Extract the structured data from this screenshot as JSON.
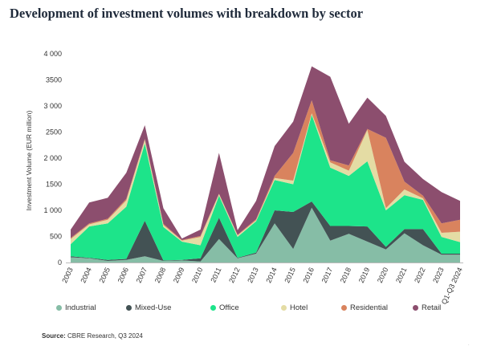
{
  "title": "Development of investment volumes with breakdown by sector",
  "source_label": "Source:",
  "source_text": "CBRE Research, Q3 2024",
  "page_marker": "·",
  "chart_data": {
    "type": "area",
    "stacked": true,
    "categories": [
      "2003",
      "2004",
      "2005",
      "2006",
      "2007",
      "2008",
      "2009",
      "2010",
      "2011",
      "2012",
      "2013",
      "2014",
      "2015",
      "2016",
      "2017",
      "2018",
      "2019",
      "2020",
      "2021",
      "2022",
      "2023",
      "Q1-Q3 2024"
    ],
    "ylabel": "Investment Volume (EUR million)",
    "ylim": [
      0,
      4000
    ],
    "yticks": [
      0,
      500,
      1000,
      1500,
      2000,
      2500,
      3000,
      3500,
      4000
    ],
    "ytick_labels": [
      "0",
      "500",
      "1 000",
      "1500",
      "2 000",
      "2500",
      "3 000",
      "3500",
      "4 000"
    ],
    "grid": false,
    "legend_position": "bottom",
    "series": [
      {
        "name": "Industrial",
        "color": "#86bda6",
        "values": [
          100,
          80,
          30,
          50,
          120,
          30,
          40,
          20,
          450,
          80,
          170,
          750,
          260,
          1050,
          420,
          550,
          400,
          250,
          560,
          330,
          150,
          150
        ]
      },
      {
        "name": "Mixed-Use",
        "color": "#435254",
        "values": [
          20,
          10,
          20,
          20,
          680,
          10,
          10,
          60,
          410,
          10,
          20,
          250,
          710,
          120,
          280,
          150,
          290,
          50,
          80,
          310,
          20,
          20
        ]
      },
      {
        "name": "Office",
        "color": "#1de48a",
        "values": [
          230,
          600,
          700,
          1000,
          1480,
          640,
          350,
          250,
          420,
          400,
          600,
          580,
          530,
          1660,
          1120,
          960,
          1250,
          700,
          650,
          560,
          320,
          220
        ]
      },
      {
        "name": "Hotel",
        "color": "#e4dca4",
        "values": [
          100,
          40,
          70,
          120,
          70,
          40,
          20,
          160,
          30,
          30,
          20,
          40,
          70,
          30,
          100,
          100,
          600,
          40,
          110,
          30,
          80,
          200
        ]
      },
      {
        "name": "Residential",
        "color": "#d9835e",
        "values": [
          20,
          20,
          20,
          30,
          20,
          20,
          10,
          20,
          10,
          10,
          20,
          40,
          530,
          250,
          40,
          100,
          20,
          1350,
          150,
          50,
          180,
          230
        ]
      },
      {
        "name": "Retail",
        "color": "#8c4e6e",
        "values": [
          160,
          400,
          400,
          500,
          260,
          300,
          30,
          120,
          780,
          90,
          350,
          570,
          600,
          650,
          1600,
          800,
          600,
          420,
          380,
          320,
          600,
          360
        ]
      }
    ]
  }
}
